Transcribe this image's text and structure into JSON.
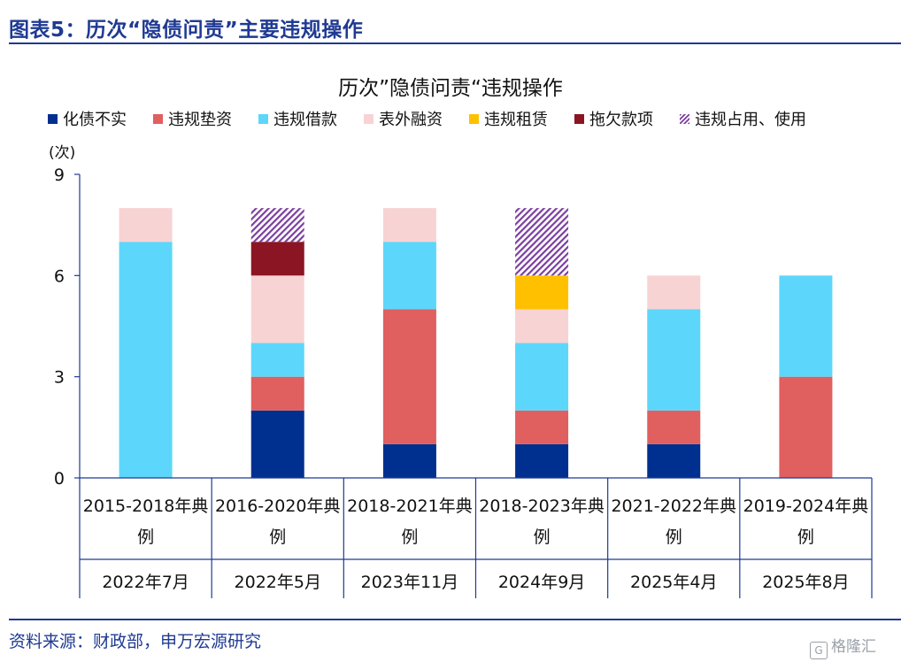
{
  "figure_title": "图表5：历次“隐债问责”主要违规操作",
  "source_text": "资料来源：财政部，申万宏源研究",
  "watermark_text": "格隆汇",
  "colors": {
    "brand": "#1f3a93"
  },
  "chart_data": {
    "type": "bar",
    "stacked": true,
    "title": "历次”隐债问责“违规操作",
    "ylabel": "(次)",
    "ylim": [
      0,
      9
    ],
    "yticks": [
      0,
      3,
      6,
      9
    ],
    "grid": false,
    "legend_position": "top",
    "categories": [
      {
        "name": "2015-2018年典例",
        "line1": "2015-2018年典",
        "line2": "例",
        "date": "2022年7月"
      },
      {
        "name": "2016-2020年典例",
        "line1": "2016-2020年典",
        "line2": "例",
        "date": "2022年5月"
      },
      {
        "name": "2018-2021年典例",
        "line1": "2018-2021年典",
        "line2": "例",
        "date": "2023年11月"
      },
      {
        "name": "2018-2023年典例",
        "line1": "2018-2023年典",
        "line2": "例",
        "date": "2024年9月"
      },
      {
        "name": "2021-2022年典例",
        "line1": "2021-2022年典",
        "line2": "例",
        "date": "2025年4月"
      },
      {
        "name": "2019-2024年典例",
        "line1": "2019-2024年典",
        "line2": "例",
        "date": "2025年8月"
      }
    ],
    "series": [
      {
        "name": "化债不实",
        "color": "#00308f",
        "pattern": "solid",
        "values": [
          0,
          2,
          1,
          1,
          1,
          0
        ]
      },
      {
        "name": "违规垫资",
        "color": "#e05f5f",
        "pattern": "solid",
        "values": [
          0,
          1,
          4,
          1,
          1,
          3
        ]
      },
      {
        "name": "违规借款",
        "color": "#5dd6fb",
        "pattern": "solid",
        "values": [
          7,
          1,
          2,
          2,
          3,
          3
        ]
      },
      {
        "name": "表外融资",
        "color": "#f8d3d4",
        "pattern": "solid",
        "values": [
          1,
          2,
          1,
          1,
          1,
          0
        ]
      },
      {
        "name": "违规租赁",
        "color": "#ffc000",
        "pattern": "solid",
        "values": [
          0,
          0,
          0,
          1,
          0,
          0
        ]
      },
      {
        "name": "拖欠款项",
        "color": "#8b1522",
        "pattern": "solid",
        "values": [
          0,
          1,
          0,
          0,
          0,
          0
        ]
      },
      {
        "name": "违规占用、使用",
        "color": "#7b3fa0",
        "pattern": "hatch",
        "values": [
          0,
          1,
          0,
          2,
          0,
          0
        ]
      }
    ]
  }
}
